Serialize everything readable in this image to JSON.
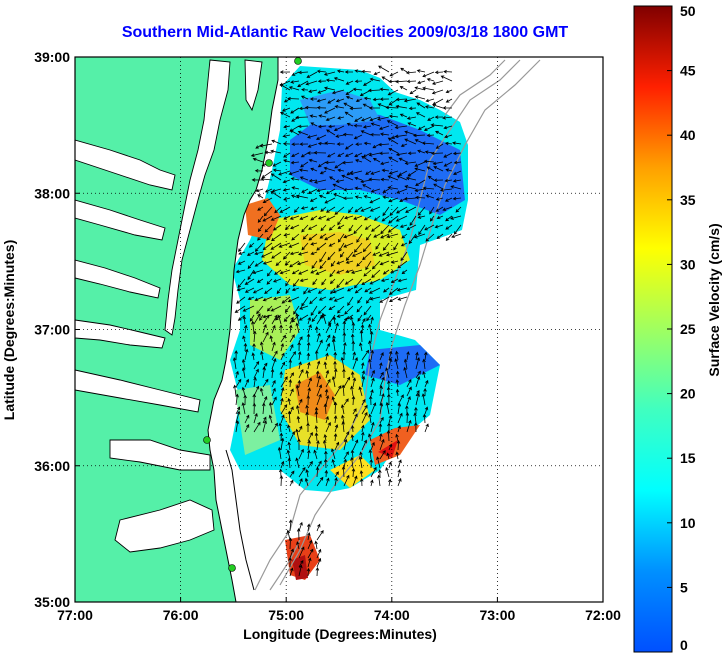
{
  "title": "Southern Mid-Atlantic Raw Velocities 2009/03/18 1800 GMT",
  "map": {
    "x_axis_label": "Longitude (Degrees:Minutes)",
    "y_axis_label": "Latitude (Degrees:Minutes)",
    "lon_ticks": [
      {
        "value": -77,
        "label": "77:00"
      },
      {
        "value": -76,
        "label": "76:00"
      },
      {
        "value": -75,
        "label": "75:00"
      },
      {
        "value": -74,
        "label": "74:00"
      },
      {
        "value": -73,
        "label": "73:00"
      },
      {
        "value": -72,
        "label": "72:00"
      }
    ],
    "lat_ticks": [
      {
        "value": 39,
        "label": "39:00"
      },
      {
        "value": 38,
        "label": "38:00"
      },
      {
        "value": 37,
        "label": "37:00"
      },
      {
        "value": 36,
        "label": "36:00"
      },
      {
        "value": 35,
        "label": "35:00"
      }
    ],
    "lon_range": [
      -77,
      -72
    ],
    "lat_range": [
      35,
      39
    ],
    "grid": "dotted",
    "land_color": "#55f0a8",
    "coastline_color": "#000000",
    "bathymetry_color": "#999999",
    "site_marker_color": "#22cc22"
  },
  "colorbar": {
    "label": "Surface Velocity (cm/s)",
    "units": "cm/s",
    "range": [
      0,
      50
    ],
    "ticks": [
      {
        "value": 0,
        "label": "0"
      },
      {
        "value": 5,
        "label": "5"
      },
      {
        "value": 10,
        "label": "10"
      },
      {
        "value": 15,
        "label": "15"
      },
      {
        "value": 20,
        "label": "20"
      },
      {
        "value": 25,
        "label": "25"
      },
      {
        "value": 30,
        "label": "30"
      },
      {
        "value": 35,
        "label": "35"
      },
      {
        "value": 40,
        "label": "40"
      },
      {
        "value": 45,
        "label": "45"
      },
      {
        "value": 50,
        "label": "50"
      }
    ],
    "colormap": "jet"
  }
}
